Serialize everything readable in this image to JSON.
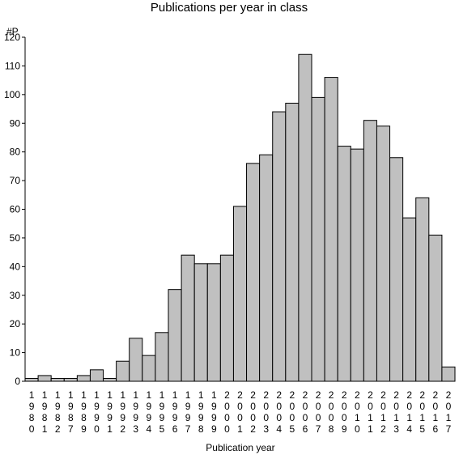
{
  "chart_data": {
    "type": "bar",
    "title": "Publications per year in class",
    "ylabel": "#P",
    "xlabel": "Publication year",
    "ylim": [
      0,
      120
    ],
    "yticks": [
      0,
      10,
      20,
      30,
      40,
      50,
      60,
      70,
      80,
      90,
      100,
      110,
      120
    ],
    "categories": [
      "1980",
      "1981",
      "1982",
      "1987",
      "1989",
      "1990",
      "1991",
      "1992",
      "1993",
      "1994",
      "1995",
      "1996",
      "1997",
      "1998",
      "1999",
      "2000",
      "2001",
      "2002",
      "2003",
      "2004",
      "2005",
      "2006",
      "2007",
      "2008",
      "2009",
      "2010",
      "2011",
      "2012",
      "2013",
      "2014",
      "2015",
      "2016",
      "2017"
    ],
    "values": [
      1,
      2,
      1,
      1,
      2,
      4,
      1,
      7,
      15,
      9,
      17,
      32,
      44,
      41,
      41,
      44,
      61,
      76,
      79,
      94,
      97,
      114,
      99,
      106,
      82,
      81,
      91,
      89,
      78,
      57,
      64,
      51,
      5
    ],
    "bar_color": "#c0c0c0",
    "grid": false,
    "legend": "none"
  }
}
